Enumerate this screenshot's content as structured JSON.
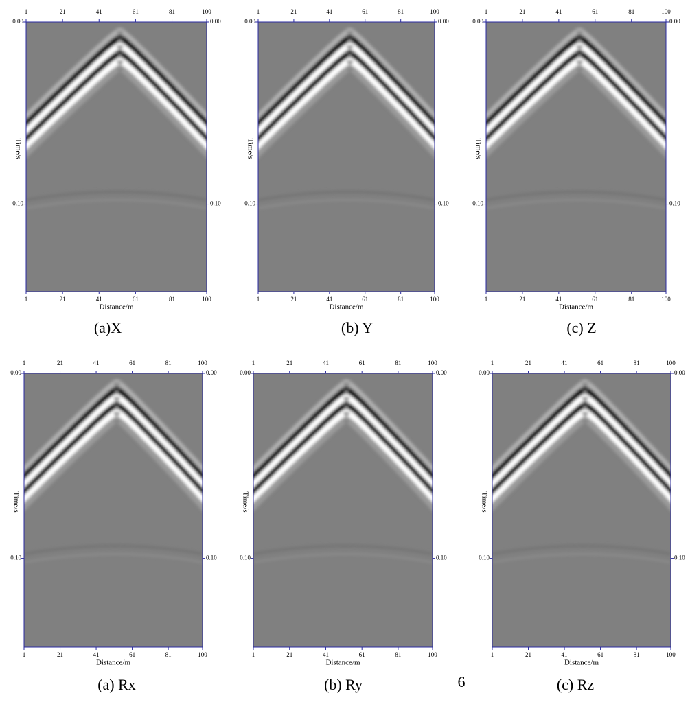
{
  "chart_data": [
    {
      "type": "seismic",
      "caption": "(a)X",
      "xlabel": "Distance/m",
      "ylabel": "Time/s",
      "xlim": [
        1,
        100
      ],
      "xticks": [
        1,
        21,
        41,
        61,
        81,
        100
      ],
      "ylim": [
        0,
        0.148
      ],
      "yticks": [
        {
          "value": 0,
          "label": "0.00"
        },
        {
          "value": 0.1,
          "label": "0.10"
        }
      ]
    },
    {
      "type": "seismic",
      "caption": "(b) Y",
      "xlabel": "Distance/m",
      "ylabel": "Time/s",
      "xlim": [
        1,
        100
      ],
      "xticks": [
        1,
        21,
        41,
        61,
        81,
        100
      ],
      "ylim": [
        0,
        0.148
      ],
      "yticks": [
        {
          "value": 0,
          "label": "0.00"
        },
        {
          "value": 0.1,
          "label": "0.10"
        }
      ]
    },
    {
      "type": "seismic",
      "caption": "(c) Z",
      "xlabel": "Distance/m",
      "ylabel": "Time/s",
      "xlim": [
        1,
        100
      ],
      "xticks": [
        1,
        21,
        41,
        61,
        81,
        100
      ],
      "ylim": [
        0,
        0.148
      ],
      "yticks": [
        {
          "value": 0,
          "label": "0.00"
        },
        {
          "value": 0.1,
          "label": "0.10"
        }
      ]
    },
    {
      "type": "seismic",
      "caption": "(a) Rx",
      "xlabel": "Distance/m",
      "ylabel": "Time/s",
      "xlim": [
        1,
        100
      ],
      "xticks": [
        1,
        21,
        41,
        61,
        81,
        100
      ],
      "ylim": [
        0,
        0.148
      ],
      "yticks": [
        {
          "value": 0,
          "label": "0.00"
        },
        {
          "value": 0.1,
          "label": "0.10"
        }
      ]
    },
    {
      "type": "seismic",
      "caption": "(b) Ry",
      "xlabel": "Distance/m",
      "ylabel": "Time/s",
      "xlim": [
        1,
        100
      ],
      "xticks": [
        1,
        21,
        41,
        61,
        81,
        100
      ],
      "ylim": [
        0,
        0.148
      ],
      "yticks": [
        {
          "value": 0,
          "label": "0.00"
        },
        {
          "value": 0.1,
          "label": "0.10"
        }
      ]
    },
    {
      "type": "seismic",
      "caption": "(c) Rz",
      "xlabel": "Distance/m",
      "ylabel": "Time/s",
      "xlim": [
        1,
        100
      ],
      "xticks": [
        1,
        21,
        41,
        61,
        81,
        100
      ],
      "ylim": [
        0,
        0.148
      ],
      "yticks": [
        {
          "value": 0,
          "label": "0.00"
        },
        {
          "value": 0.1,
          "label": "0.10"
        }
      ]
    }
  ],
  "page_number": "6"
}
